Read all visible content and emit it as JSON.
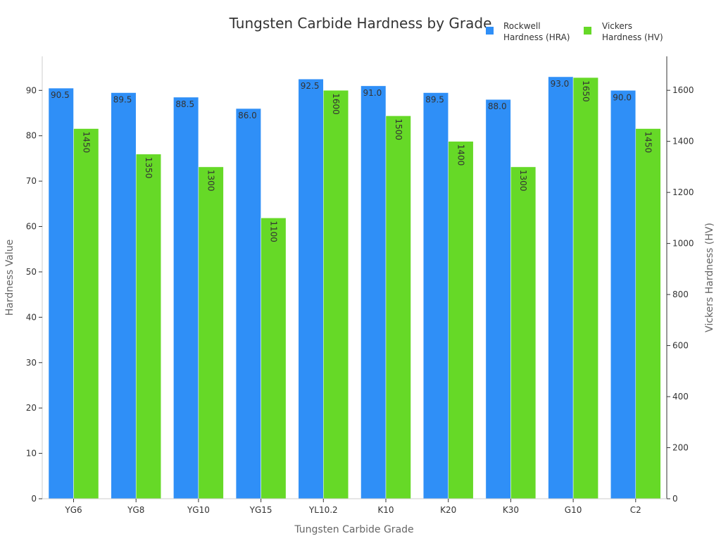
{
  "chart_data": {
    "type": "bar",
    "title": "Tungsten Carbide Hardness by Grade",
    "xlabel": "Tungsten Carbide Grade",
    "ylabel": "Hardness Value",
    "y2label": "Vickers Hardness (HV)",
    "categories": [
      "YG6",
      "YG8",
      "YG10",
      "YG15",
      "YL10.2",
      "K10",
      "K20",
      "K30",
      "G10",
      "C2"
    ],
    "series": [
      {
        "name": "Rockwell Hardness (HRA)",
        "legend_lines": [
          "Rockwell",
          "Hardness (HRA)"
        ],
        "axis": "left",
        "color": "#2f8ff7",
        "values": [
          90.5,
          89.5,
          88.5,
          86.0,
          92.5,
          91.0,
          89.5,
          88.0,
          93.0,
          90.0
        ],
        "labels": [
          "90.5",
          "89.5",
          "88.5",
          "86.0",
          "92.5",
          "91.0",
          "89.5",
          "88.0",
          "93.0",
          "90.0"
        ]
      },
      {
        "name": "Vickers Hardness (HV)",
        "legend_lines": [
          "Vickers",
          "Hardness (HV)"
        ],
        "axis": "right",
        "color": "#66d927",
        "values": [
          1450,
          1350,
          1300,
          1100,
          1600,
          1500,
          1400,
          1300,
          1650,
          1450
        ],
        "labels": [
          "1450",
          "1350",
          "1300",
          "1100",
          "1600",
          "1500",
          "1400",
          "1300",
          "1650",
          "1450"
        ]
      }
    ],
    "ylim": [
      0,
      97.5
    ],
    "y2lim": [
      0,
      1733
    ],
    "yticks": [
      0,
      10,
      20,
      30,
      40,
      50,
      60,
      70,
      80,
      90
    ],
    "y2ticks": [
      0,
      200,
      400,
      600,
      800,
      1000,
      1200,
      1400,
      1600
    ],
    "grid": false,
    "legend_position": "top-right"
  }
}
